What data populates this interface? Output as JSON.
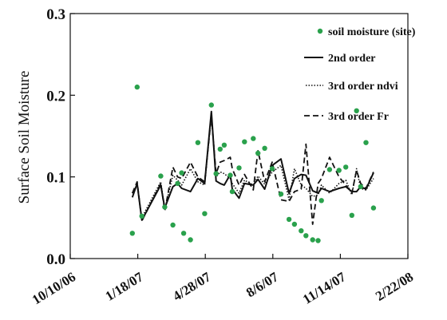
{
  "chart_data": {
    "type": "line",
    "ylabel": "Surface Soil Moisture",
    "xlabel": "",
    "ylim": [
      0.0,
      0.3
    ],
    "yticks": [
      "0.0",
      "0.1",
      "0.2",
      "0.3"
    ],
    "xlim": [
      "2006-10-10",
      "2008-02-22"
    ],
    "xticks": [
      "10/10/06",
      "1/18/07",
      "4/28/07",
      "8/6/07",
      "11/14/07",
      "2/22/08"
    ],
    "legend_position": "top-right",
    "grid": false,
    "colors": {
      "site": "#2aa14c",
      "line": "#111111"
    },
    "series": [
      {
        "name": "soil moisture (site)",
        "style": "scatter",
        "x": [
          "2007-01-10",
          "2007-01-17",
          "2007-01-24",
          "2007-02-21",
          "2007-02-27",
          "2007-03-11",
          "2007-03-18",
          "2007-03-24",
          "2007-03-27",
          "2007-04-06",
          "2007-04-17",
          "2007-04-27",
          "2007-05-07",
          "2007-05-14",
          "2007-05-20",
          "2007-05-26",
          "2007-06-04",
          "2007-06-07",
          "2007-06-17",
          "2007-06-25",
          "2007-07-08",
          "2007-07-15",
          "2007-07-25",
          "2007-08-05",
          "2007-08-18",
          "2007-08-30",
          "2007-09-07",
          "2007-09-17",
          "2007-09-24",
          "2007-10-04",
          "2007-10-12",
          "2007-10-17",
          "2007-10-29",
          "2007-11-12",
          "2007-11-22",
          "2007-12-01",
          "2007-12-08",
          "2007-12-14",
          "2007-12-22",
          "2008-01-02"
        ],
        "y": [
          0.031,
          0.21,
          0.052,
          0.101,
          0.063,
          0.041,
          0.092,
          0.105,
          0.031,
          0.023,
          0.142,
          0.055,
          0.188,
          0.104,
          0.134,
          0.139,
          0.102,
          0.082,
          0.111,
          0.143,
          0.147,
          0.129,
          0.135,
          0.11,
          0.079,
          0.048,
          0.042,
          0.034,
          0.028,
          0.023,
          0.022,
          0.071,
          0.109,
          0.108,
          0.112,
          0.053,
          0.181,
          0.088,
          0.142,
          0.062
        ]
      },
      {
        "name": "2nd order",
        "style": "solid",
        "x": [
          "2007-01-10",
          "2007-01-17",
          "2007-01-24",
          "2007-02-21",
          "2007-02-27",
          "2007-03-11",
          "2007-03-18",
          "2007-03-24",
          "2007-04-06",
          "2007-04-17",
          "2007-04-27",
          "2007-05-07",
          "2007-05-14",
          "2007-05-20",
          "2007-05-26",
          "2007-06-04",
          "2007-06-07",
          "2007-06-17",
          "2007-06-25",
          "2007-07-08",
          "2007-07-15",
          "2007-07-25",
          "2007-08-05",
          "2007-08-18",
          "2007-08-30",
          "2007-09-07",
          "2007-09-17",
          "2007-09-24",
          "2007-10-04",
          "2007-10-12",
          "2007-10-17",
          "2007-10-29",
          "2007-11-12",
          "2007-11-22",
          "2007-12-01",
          "2007-12-08",
          "2007-12-14",
          "2007-12-22",
          "2008-01-02"
        ],
        "y": [
          0.075,
          0.092,
          0.047,
          0.09,
          0.062,
          0.088,
          0.092,
          0.086,
          0.082,
          0.098,
          0.092,
          0.18,
          0.095,
          0.092,
          0.09,
          0.103,
          0.085,
          0.074,
          0.092,
          0.09,
          0.097,
          0.085,
          0.114,
          0.122,
          0.08,
          0.098,
          0.103,
          0.102,
          0.083,
          0.08,
          0.086,
          0.082,
          0.086,
          0.088,
          0.082,
          0.082,
          0.088,
          0.085,
          0.105
        ]
      },
      {
        "name": "3rd order ndvi",
        "style": "dotted",
        "x": [
          "2007-01-10",
          "2007-01-17",
          "2007-01-24",
          "2007-02-21",
          "2007-02-27",
          "2007-03-11",
          "2007-03-18",
          "2007-03-24",
          "2007-04-06",
          "2007-04-17",
          "2007-04-27",
          "2007-05-07",
          "2007-05-14",
          "2007-05-20",
          "2007-05-26",
          "2007-06-04",
          "2007-06-07",
          "2007-06-17",
          "2007-06-25",
          "2007-07-08",
          "2007-07-15",
          "2007-07-25",
          "2007-08-05",
          "2007-08-18",
          "2007-08-30",
          "2007-09-07",
          "2007-09-17",
          "2007-09-24",
          "2007-10-04",
          "2007-10-12",
          "2007-10-17",
          "2007-10-29",
          "2007-11-12",
          "2007-11-22",
          "2007-12-01",
          "2007-12-08",
          "2007-12-14",
          "2007-12-22",
          "2008-01-02"
        ],
        "y": [
          0.08,
          0.09,
          0.05,
          0.094,
          0.06,
          0.102,
          0.096,
          0.09,
          0.11,
          0.094,
          0.09,
          0.178,
          0.1,
          0.106,
          0.104,
          0.098,
          0.092,
          0.08,
          0.096,
          0.09,
          0.101,
          0.091,
          0.106,
          0.114,
          0.072,
          0.11,
          0.09,
          0.086,
          0.076,
          0.078,
          0.09,
          0.08,
          0.092,
          0.096,
          0.078,
          0.11,
          0.086,
          0.084,
          0.098
        ]
      },
      {
        "name": "3rd order Fr",
        "style": "dashed",
        "x": [
          "2007-01-10",
          "2007-01-17",
          "2007-01-24",
          "2007-02-21",
          "2007-02-27",
          "2007-03-11",
          "2007-03-18",
          "2007-03-24",
          "2007-04-06",
          "2007-04-17",
          "2007-04-27",
          "2007-05-07",
          "2007-05-14",
          "2007-05-20",
          "2007-05-26",
          "2007-06-04",
          "2007-06-07",
          "2007-06-17",
          "2007-06-25",
          "2007-07-08",
          "2007-07-15",
          "2007-07-25",
          "2007-08-05",
          "2007-08-18",
          "2007-08-30",
          "2007-09-07",
          "2007-09-17",
          "2007-09-24",
          "2007-10-04",
          "2007-10-12",
          "2007-10-17",
          "2007-10-29",
          "2007-11-12",
          "2007-11-22",
          "2007-12-01",
          "2007-12-08",
          "2007-12-14",
          "2007-12-22",
          "2008-01-02"
        ],
        "y": [
          0.08,
          0.094,
          0.046,
          0.092,
          0.058,
          0.112,
          0.1,
          0.098,
          0.118,
          0.1,
          0.094,
          0.174,
          0.104,
          0.118,
          0.12,
          0.124,
          0.11,
          0.09,
          0.103,
          0.084,
          0.132,
          0.094,
          0.118,
          0.072,
          0.07,
          0.082,
          0.085,
          0.14,
          0.042,
          0.092,
          0.098,
          0.124,
          0.1,
          0.09,
          0.08,
          0.108,
          0.092,
          0.086,
          0.106
        ]
      }
    ]
  }
}
